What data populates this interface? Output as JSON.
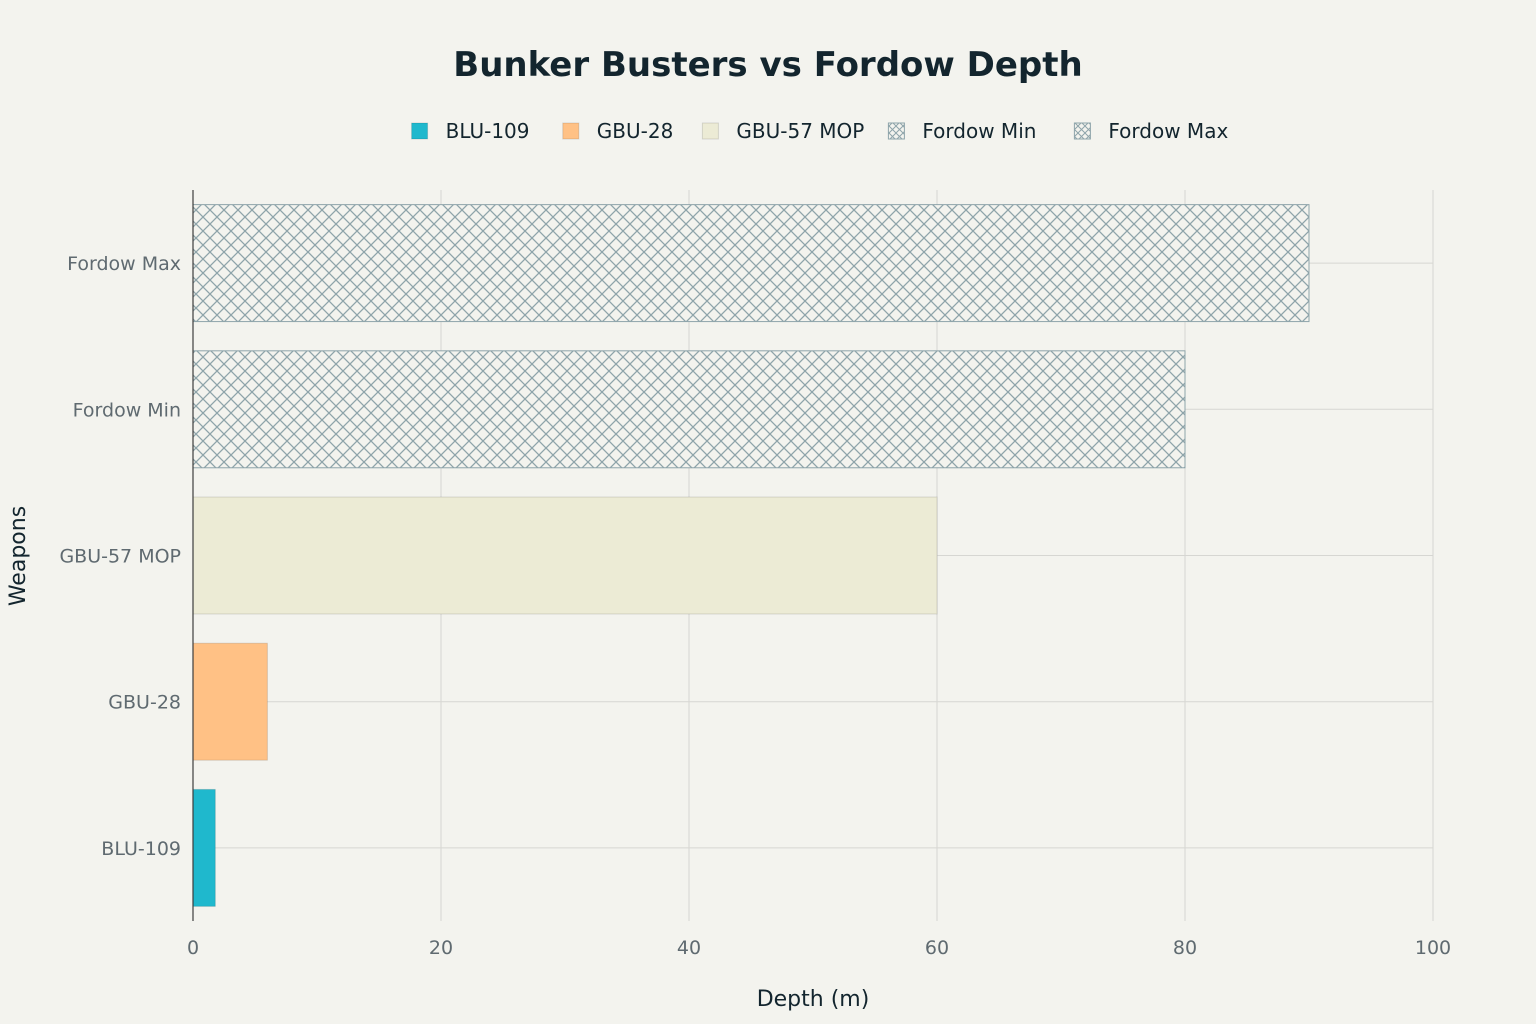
{
  "colors": {
    "background": "#f3f3ee",
    "grid": "#d6d6d2",
    "axis_line": "#3d3d3d",
    "hatch_line": "#8ea4aa"
  },
  "chart_data": {
    "type": "bar",
    "orientation": "horizontal",
    "title": "Bunker Busters vs Fordow Depth",
    "xlabel": "Depth (m)",
    "ylabel": "Weapons",
    "xlim": [
      0,
      100
    ],
    "x_ticks": [
      0,
      20,
      40,
      60,
      80,
      100
    ],
    "grid": true,
    "legend_position": "top-center",
    "categories": [
      "BLU-109",
      "GBU-28",
      "GBU-57 MOP",
      "Fordow Min",
      "Fordow Max"
    ],
    "series": [
      {
        "name": "BLU-109",
        "category": "BLU-109",
        "value": 1.8,
        "color": "#1fb8cd",
        "pattern": "solid"
      },
      {
        "name": "GBU-28",
        "category": "GBU-28",
        "value": 6,
        "color": "#ffc185",
        "pattern": "solid"
      },
      {
        "name": "GBU-57 MOP",
        "category": "GBU-57 MOP",
        "value": 60,
        "color": "#ecebd5",
        "pattern": "solid"
      },
      {
        "name": "Fordow Min",
        "category": "Fordow Min",
        "value": 80,
        "color": "#8ea4aa",
        "pattern": "crosshatch"
      },
      {
        "name": "Fordow Max",
        "category": "Fordow Max",
        "value": 90,
        "color": "#8ea4aa",
        "pattern": "crosshatch"
      }
    ]
  }
}
